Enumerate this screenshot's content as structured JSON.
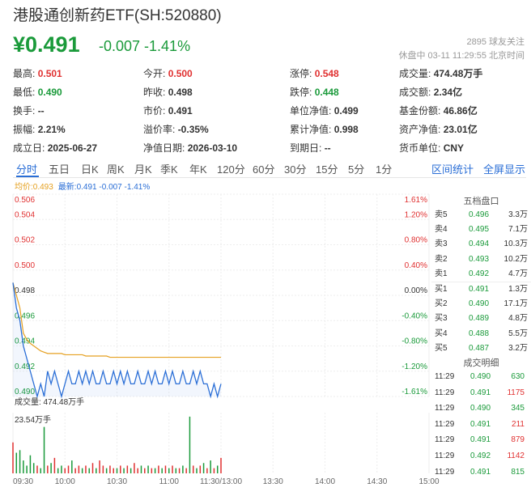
{
  "header": {
    "title": "港股通创新药ETF(SH:520880)",
    "price": "¥0.491",
    "change": "-0.007 -1.41%",
    "followers": "2895 球友关注",
    "status": "休盘中 03-11 11:29:55 北京时间"
  },
  "stats": [
    [
      {
        "label": "最高:",
        "value": "0.501",
        "color": "up"
      },
      {
        "label": "今开:",
        "value": "0.500",
        "color": "up"
      },
      {
        "label": "涨停:",
        "value": "0.548",
        "color": "up"
      },
      {
        "label": "成交量:",
        "value": "474.48万手",
        "color": ""
      }
    ],
    [
      {
        "label": "最低:",
        "value": "0.490",
        "color": "dn"
      },
      {
        "label": "昨收:",
        "value": "0.498",
        "color": ""
      },
      {
        "label": "跌停:",
        "value": "0.448",
        "color": "dn"
      },
      {
        "label": "成交额:",
        "value": "2.34亿",
        "color": ""
      }
    ],
    [
      {
        "label": "换手:",
        "value": "--",
        "color": ""
      },
      {
        "label": "市价:",
        "value": "0.491",
        "color": ""
      },
      {
        "label": "单位净值:",
        "value": "0.499",
        "color": ""
      },
      {
        "label": "基金份额:",
        "value": "46.86亿",
        "color": ""
      }
    ],
    [
      {
        "label": "振幅:",
        "value": "2.21%",
        "color": ""
      },
      {
        "label": "溢价率:",
        "value": "-0.35%",
        "color": ""
      },
      {
        "label": "累计净值:",
        "value": "0.998",
        "color": ""
      },
      {
        "label": "资产净值:",
        "value": "23.01亿",
        "color": ""
      }
    ],
    [
      {
        "label": "成立日:",
        "value": "2025-06-27",
        "color": ""
      },
      {
        "label": "净值日期:",
        "value": "2026-03-10",
        "color": ""
      },
      {
        "label": "到期日:",
        "value": "--",
        "color": ""
      },
      {
        "label": "货币单位:",
        "value": "CNY",
        "color": ""
      }
    ]
  ],
  "tabs": [
    "分时",
    "五日",
    "日K",
    "周K",
    "月K",
    "季K",
    "年K",
    "120分",
    "60分",
    "30分",
    "15分",
    "5分",
    "1分"
  ],
  "active_tab": "分时",
  "right_tabs": [
    "区间统计",
    "全屏显示"
  ],
  "legend": {
    "avg": "均价:0.493",
    "last": "最新:0.491 -0.007 -1.41%"
  },
  "volume_label": "成交量: 474.48万手",
  "volume_max_label": "23.54万手",
  "chart_data": {
    "type": "line",
    "y_tick_labels": [
      "0.506",
      "0.504",
      "0.502",
      "0.500",
      "0.498",
      "0.496",
      "0.494",
      "0.492",
      "0.490"
    ],
    "pct_tick_labels": [
      "1.61%",
      "1.20%",
      "0.80%",
      "0.40%",
      "0.00%",
      "-0.40%",
      "-0.80%",
      "-1.20%",
      "-1.61%"
    ],
    "x_tick_labels": [
      "09:30",
      "10:00",
      "10:30",
      "11:00",
      "11:30/13:00",
      "13:30",
      "14:00",
      "14:30",
      "15:00"
    ],
    "ylim": [
      0.49,
      0.506
    ],
    "prev_close": 0.498,
    "x_minutes": [
      0,
      2,
      4,
      6,
      8,
      10,
      12,
      14,
      16,
      18,
      20,
      22,
      24,
      26,
      28,
      30,
      32,
      34,
      36,
      38,
      40,
      42,
      44,
      46,
      48,
      50,
      52,
      54,
      56,
      58,
      60,
      62,
      64,
      66,
      68,
      70,
      72,
      74,
      76,
      78,
      80,
      82,
      84,
      86,
      88,
      90,
      92,
      94,
      96,
      98,
      100,
      102,
      104,
      106,
      108,
      110,
      112,
      114,
      116,
      118,
      120
    ],
    "price": [
      0.499,
      0.497,
      0.496,
      0.494,
      0.493,
      0.492,
      0.491,
      0.49,
      0.491,
      0.49,
      0.492,
      0.491,
      0.492,
      0.491,
      0.49,
      0.491,
      0.492,
      0.491,
      0.491,
      0.492,
      0.491,
      0.492,
      0.491,
      0.492,
      0.491,
      0.491,
      0.492,
      0.491,
      0.491,
      0.492,
      0.491,
      0.492,
      0.491,
      0.492,
      0.491,
      0.491,
      0.492,
      0.491,
      0.491,
      0.492,
      0.491,
      0.492,
      0.491,
      0.491,
      0.492,
      0.491,
      0.492,
      0.491,
      0.491,
      0.492,
      0.491,
      0.491,
      0.492,
      0.491,
      0.492,
      0.491,
      0.491,
      0.49,
      0.491,
      0.49,
      0.491
    ],
    "avg": [
      0.499,
      0.498,
      0.497,
      0.495,
      0.4945,
      0.4942,
      0.494,
      0.4938,
      0.4936,
      0.4935,
      0.4934,
      0.4934,
      0.4934,
      0.4934,
      0.4934,
      0.4933,
      0.4933,
      0.4933,
      0.4933,
      0.4933,
      0.4933,
      0.4932,
      0.4932,
      0.4932,
      0.4932,
      0.4932,
      0.4932,
      0.4932,
      0.4931,
      0.4931,
      0.4931,
      0.4931,
      0.4931,
      0.4931,
      0.4931,
      0.4931,
      0.4931,
      0.4931,
      0.4931,
      0.4931,
      0.4931,
      0.4931,
      0.4931,
      0.4931,
      0.4931,
      0.4931,
      0.4931,
      0.4931,
      0.4931,
      0.4931,
      0.4931,
      0.4931,
      0.4931,
      0.4931,
      0.4931,
      0.4931,
      0.4931,
      0.4931,
      0.4931,
      0.4931,
      0.4931
    ],
    "volume_max": 23.54,
    "volume": [
      12,
      8,
      9,
      5,
      3,
      7,
      4,
      3,
      2,
      18,
      3,
      4,
      6,
      2,
      3,
      2,
      3,
      5,
      2,
      3,
      2,
      3,
      2,
      4,
      2,
      5,
      3,
      2,
      3,
      2,
      2,
      3,
      2,
      3,
      2,
      4,
      2,
      3,
      2,
      3,
      2,
      2,
      3,
      2,
      3,
      2,
      3,
      2,
      2,
      3,
      2,
      22,
      3,
      2,
      3,
      4,
      2,
      5,
      2,
      3,
      6
    ],
    "volume_colors": [
      "up",
      "dn",
      "dn",
      "dn",
      "dn",
      "dn",
      "dn",
      "up",
      "dn",
      "dn",
      "up",
      "dn",
      "up",
      "dn",
      "dn",
      "up",
      "up",
      "dn",
      "up",
      "up",
      "dn",
      "up",
      "dn",
      "up",
      "dn",
      "up",
      "up",
      "dn",
      "up",
      "up",
      "dn",
      "up",
      "dn",
      "up",
      "dn",
      "up",
      "up",
      "dn",
      "up",
      "dn",
      "up",
      "dn",
      "up",
      "dn",
      "up",
      "dn",
      "up",
      "dn",
      "up",
      "dn",
      "up",
      "dn",
      "up",
      "dn",
      "up",
      "dn",
      "up",
      "dn",
      "up",
      "dn",
      "up"
    ]
  },
  "order_book": {
    "title": "五档盘口",
    "rows": [
      {
        "k": "卖5",
        "p": "0.496",
        "q": "3.3万"
      },
      {
        "k": "卖4",
        "p": "0.495",
        "q": "7.1万"
      },
      {
        "k": "卖3",
        "p": "0.494",
        "q": "10.3万"
      },
      {
        "k": "卖2",
        "p": "0.493",
        "q": "10.2万"
      },
      {
        "k": "卖1",
        "p": "0.492",
        "q": "4.7万"
      },
      {
        "k": "买1",
        "p": "0.491",
        "q": "1.3万"
      },
      {
        "k": "买2",
        "p": "0.490",
        "q": "17.1万"
      },
      {
        "k": "买3",
        "p": "0.489",
        "q": "4.8万"
      },
      {
        "k": "买4",
        "p": "0.488",
        "q": "5.5万"
      },
      {
        "k": "买5",
        "p": "0.487",
        "q": "3.2万"
      }
    ]
  },
  "trade_detail": {
    "title": "成交明细",
    "rows": [
      {
        "t": "11:29",
        "p": "0.490",
        "pc": "dn",
        "v": "630",
        "vc": "dn"
      },
      {
        "t": "11:29",
        "p": "0.491",
        "pc": "dn",
        "v": "1175",
        "vc": "up"
      },
      {
        "t": "11:29",
        "p": "0.490",
        "pc": "dn",
        "v": "345",
        "vc": "dn"
      },
      {
        "t": "11:29",
        "p": "0.491",
        "pc": "dn",
        "v": "211",
        "vc": "up"
      },
      {
        "t": "11:29",
        "p": "0.491",
        "pc": "dn",
        "v": "879",
        "vc": "up"
      },
      {
        "t": "11:29",
        "p": "0.492",
        "pc": "dn",
        "v": "1142",
        "vc": "up"
      },
      {
        "t": "11:29",
        "p": "0.491",
        "pc": "dn",
        "v": "815",
        "vc": "dn"
      }
    ]
  },
  "colors": {
    "up": "#e03030",
    "down": "#1a9a3a",
    "accent": "#2a6ed6",
    "avg_line": "#e5a020"
  }
}
